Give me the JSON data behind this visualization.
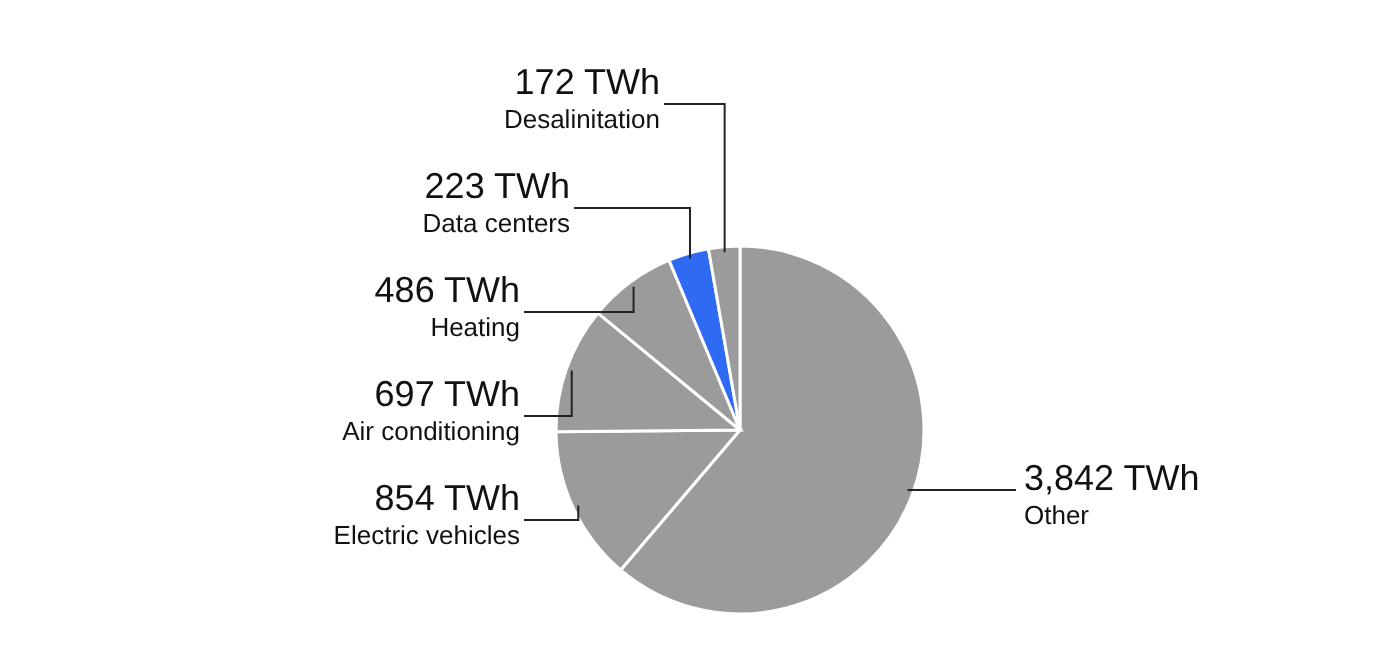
{
  "chart_data": {
    "type": "pie",
    "categories": [
      "Other",
      "Electric vehicles",
      "Air conditioning",
      "Heating",
      "Data centers",
      "Desalinitation"
    ],
    "values": [
      3842,
      854,
      697,
      486,
      223,
      172
    ],
    "value_labels": [
      "3,842 TWh",
      "854 TWh",
      "697 TWh",
      "486 TWh",
      "223 TWh",
      "172 TWh"
    ],
    "colors": [
      "#9b9b9b",
      "#9b9b9b",
      "#9b9b9b",
      "#9b9b9b",
      "#2f6af2",
      "#9b9b9b"
    ]
  }
}
